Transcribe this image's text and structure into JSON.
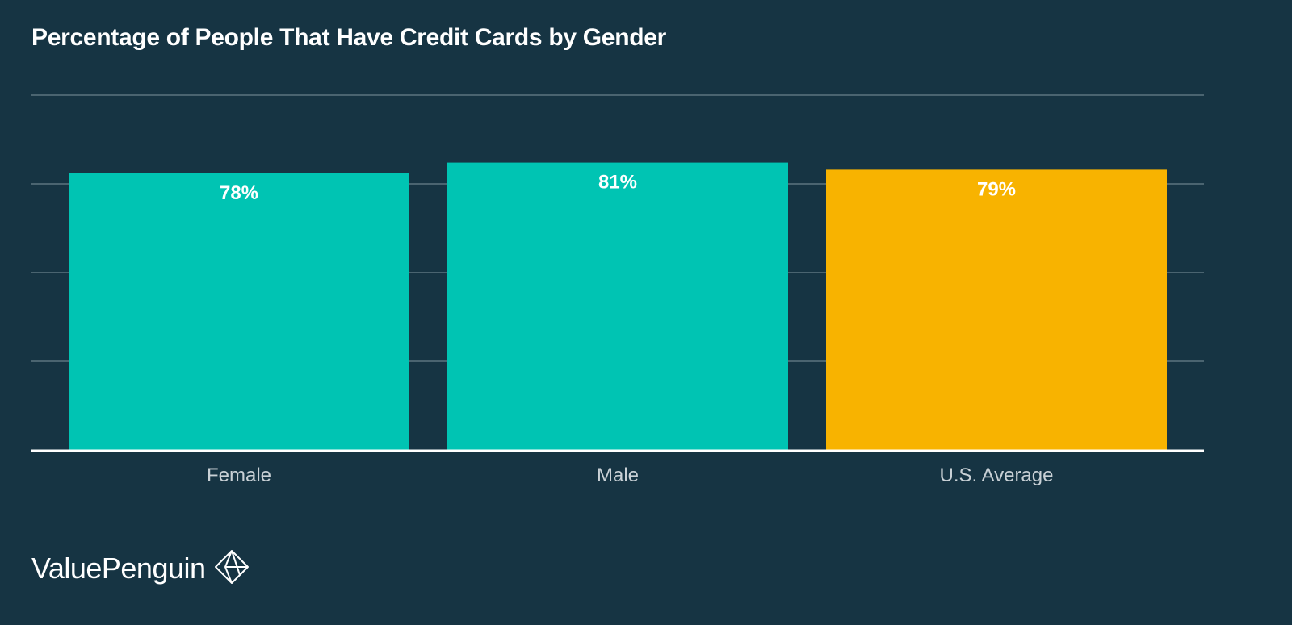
{
  "chart_data": {
    "type": "bar",
    "title": "Percentage of People That Have Credit Cards by Gender",
    "xlabel": "",
    "ylabel": "",
    "categories": [
      "Female",
      "Male",
      "U.S. Average"
    ],
    "values": [
      78,
      81,
      79
    ],
    "data_labels": [
      "78%",
      "81%",
      "79%"
    ],
    "ylim": [
      0,
      100
    ],
    "grid": true,
    "legend": "none",
    "colors": [
      "#00C4B3",
      "#00C4B3",
      "#F8B300"
    ]
  },
  "brand": {
    "name": "ValuePenguin",
    "logo_icon": "penguin-diamond-icon"
  },
  "theme": {
    "background": "#163443",
    "gridline": "#5C7480",
    "axis": "#FFFFFF",
    "tick_label": "#C9D1D6",
    "data_label": "#FFFFFF"
  }
}
